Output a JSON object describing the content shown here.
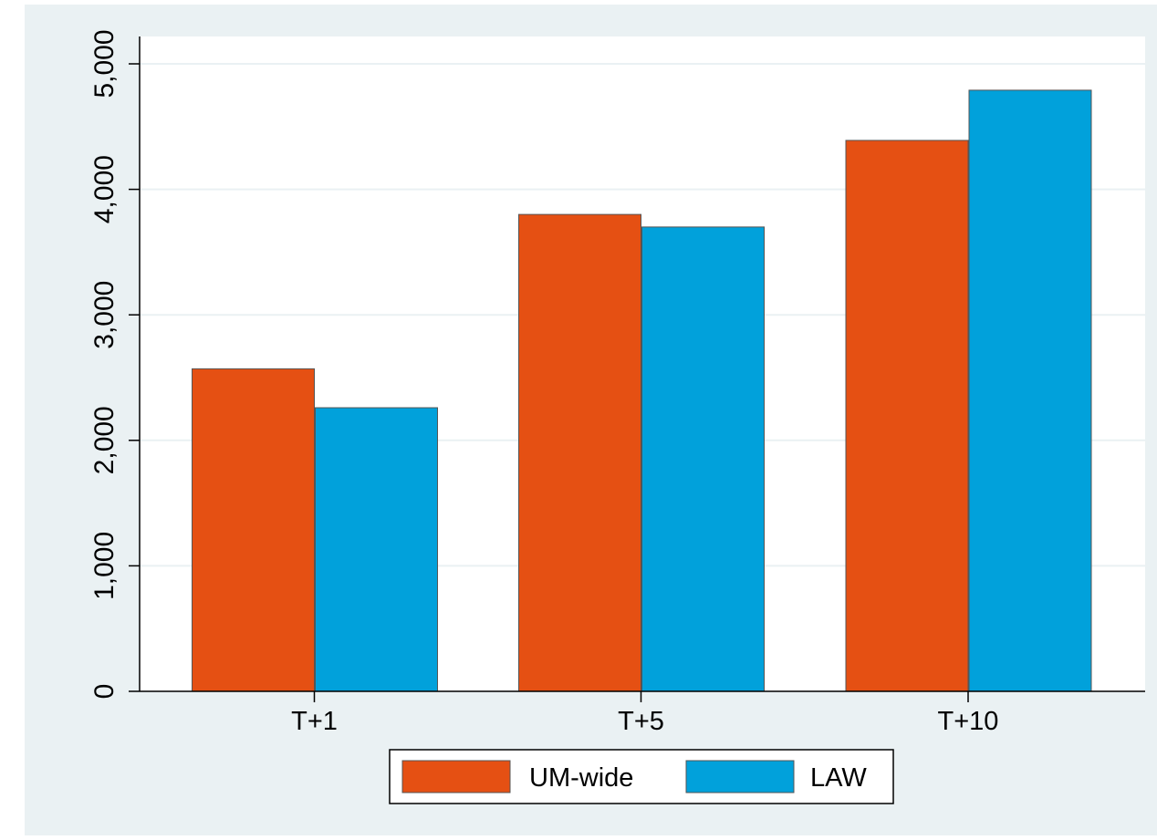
{
  "chart_data": {
    "type": "bar",
    "categories": [
      "T+1",
      "T+5",
      "T+10"
    ],
    "series": [
      {
        "name": "UM-wide",
        "values": [
          2570,
          3800,
          4390
        ],
        "color": "#e55013"
      },
      {
        "name": "LAW",
        "values": [
          2260,
          3700,
          4790
        ],
        "color": "#01a1db"
      }
    ],
    "ylim": [
      0,
      5000
    ],
    "yticks": [
      0,
      1000,
      2000,
      3000,
      4000,
      5000
    ],
    "ytick_labels": [
      "0",
      "1,000",
      "2,000",
      "3,000",
      "4,000",
      "5,000"
    ],
    "xlabel": "",
    "ylabel": "",
    "title": "",
    "grid": true,
    "legend_position": "bottom",
    "colors": {
      "outer_background": "#eaf1f3",
      "plot_background": "#ffffff",
      "gridline": "#eaf1f3",
      "bar_outline": "#555555"
    }
  }
}
